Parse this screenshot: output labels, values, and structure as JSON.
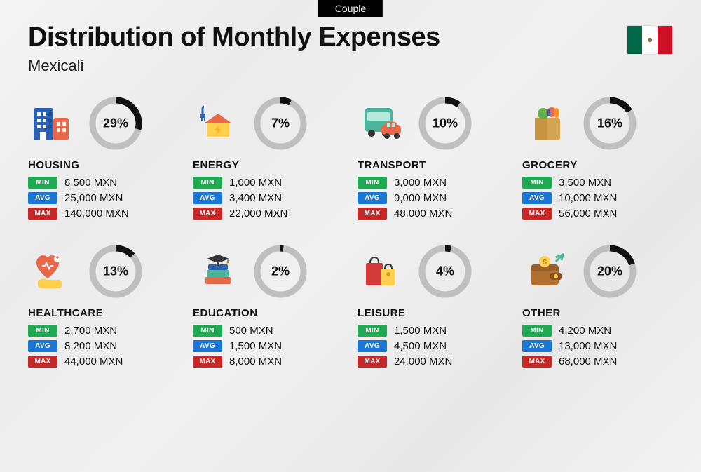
{
  "badge": "Couple",
  "title": "Distribution of Monthly Expenses",
  "subtitle": "Mexicali",
  "currency": "MXN",
  "labels": {
    "min": "MIN",
    "avg": "AVG",
    "max": "MAX"
  },
  "colors": {
    "min": "#1ea952",
    "avg": "#1976d2",
    "max": "#c62828",
    "donut_track": "#bfbfbf",
    "donut_fill": "#111111",
    "background": "#f0f0f0",
    "text": "#111111"
  },
  "donut": {
    "radius": 33,
    "stroke_width": 9
  },
  "flag": {
    "colors": [
      "#006847",
      "#ffffff",
      "#ce1126"
    ]
  },
  "categories": [
    {
      "key": "housing",
      "name": "HOUSING",
      "percent": 29,
      "min": "8,500",
      "avg": "25,000",
      "max": "140,000",
      "icon": "buildings"
    },
    {
      "key": "energy",
      "name": "ENERGY",
      "percent": 7,
      "min": "1,000",
      "avg": "3,400",
      "max": "22,000",
      "icon": "house-bolt"
    },
    {
      "key": "transport",
      "name": "TRANSPORT",
      "percent": 10,
      "min": "3,000",
      "avg": "9,000",
      "max": "48,000",
      "icon": "bus-car"
    },
    {
      "key": "grocery",
      "name": "GROCERY",
      "percent": 16,
      "min": "3,500",
      "avg": "10,000",
      "max": "56,000",
      "icon": "grocery-bag"
    },
    {
      "key": "healthcare",
      "name": "HEALTHCARE",
      "percent": 13,
      "min": "2,700",
      "avg": "8,200",
      "max": "44,000",
      "icon": "heart-hand"
    },
    {
      "key": "education",
      "name": "EDUCATION",
      "percent": 2,
      "min": "500",
      "avg": "1,500",
      "max": "8,000",
      "icon": "grad-books"
    },
    {
      "key": "leisure",
      "name": "LEISURE",
      "percent": 4,
      "min": "1,500",
      "avg": "4,500",
      "max": "24,000",
      "icon": "shopping-bags"
    },
    {
      "key": "other",
      "name": "OTHER",
      "percent": 20,
      "min": "4,200",
      "avg": "13,000",
      "max": "68,000",
      "icon": "wallet-arrow"
    }
  ]
}
